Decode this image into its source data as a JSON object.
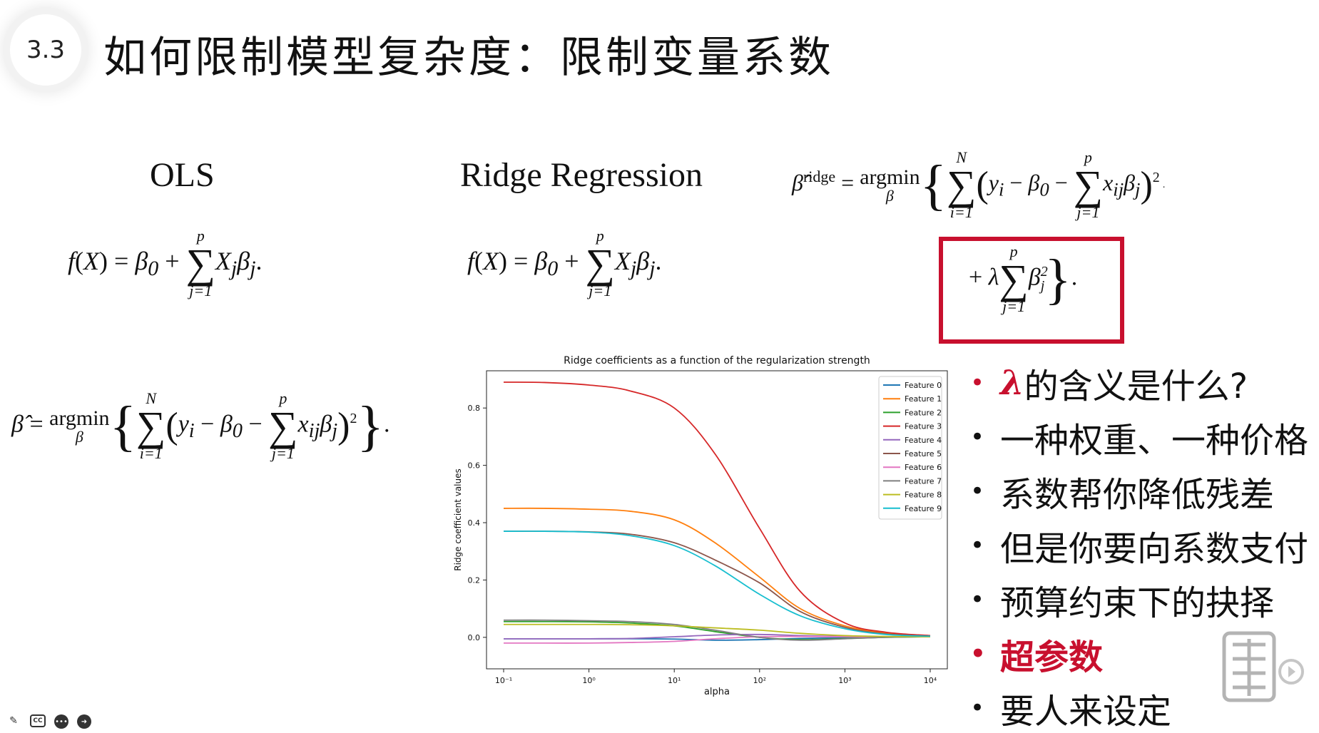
{
  "slide": {
    "section_number": "3.3",
    "title": "如何限制模型复杂度：限制变量系数"
  },
  "ols": {
    "heading": "OLS"
  },
  "ridge": {
    "heading": "Ridge Regression"
  },
  "chart_data": {
    "type": "line",
    "title": "Ridge coefficients as a function of the regularization strength",
    "xlabel": "alpha",
    "ylabel": "Ridge coefficient values",
    "xscale": "log",
    "xlim": [
      0.1,
      10000
    ],
    "ylim": [
      -0.08,
      0.9
    ],
    "x_ticks": [
      "10⁻¹",
      "10⁰",
      "10¹",
      "10²",
      "10³",
      "10⁴"
    ],
    "y_ticks": [
      "0.0",
      "0.2",
      "0.4",
      "0.6",
      "0.8"
    ],
    "x": [
      0.1,
      0.3,
      1,
      3,
      10,
      30,
      100,
      300,
      1000,
      3000,
      10000
    ],
    "legend_position": "top-right",
    "series": [
      {
        "name": "Feature 0",
        "color": "#1f77b4",
        "values": [
          -0.005,
          -0.005,
          -0.005,
          -0.005,
          -0.006,
          -0.01,
          -0.008,
          -0.004,
          -0.001,
          0.001,
          0.002
        ]
      },
      {
        "name": "Feature 1",
        "color": "#ff7f0e",
        "values": [
          0.45,
          0.45,
          0.447,
          0.44,
          0.41,
          0.33,
          0.21,
          0.1,
          0.04,
          0.015,
          0.005
        ]
      },
      {
        "name": "Feature 2",
        "color": "#2ca02c",
        "values": [
          0.055,
          0.055,
          0.054,
          0.05,
          0.04,
          0.02,
          0.0,
          -0.008,
          -0.004,
          0.0,
          0.002
        ]
      },
      {
        "name": "Feature 3",
        "color": "#d62728",
        "values": [
          0.89,
          0.889,
          0.88,
          0.86,
          0.8,
          0.64,
          0.38,
          0.16,
          0.05,
          0.018,
          0.006
        ]
      },
      {
        "name": "Feature 4",
        "color": "#9467bd",
        "values": [
          -0.005,
          -0.005,
          -0.005,
          -0.004,
          0.002,
          0.008,
          0.01,
          0.006,
          0.003,
          0.002,
          0.002
        ]
      },
      {
        "name": "Feature 5",
        "color": "#8c564b",
        "values": [
          0.37,
          0.37,
          0.368,
          0.36,
          0.33,
          0.27,
          0.19,
          0.09,
          0.035,
          0.012,
          0.004
        ]
      },
      {
        "name": "Feature 6",
        "color": "#e377c2",
        "values": [
          -0.02,
          -0.02,
          -0.02,
          -0.018,
          -0.014,
          -0.005,
          0.002,
          0.003,
          0.002,
          0.002,
          0.002
        ]
      },
      {
        "name": "Feature 7",
        "color": "#7f7f7f",
        "values": [
          0.06,
          0.06,
          0.058,
          0.055,
          0.045,
          0.025,
          0.0,
          -0.01,
          -0.005,
          0.0,
          0.002
        ]
      },
      {
        "name": "Feature 8",
        "color": "#bcbd22",
        "values": [
          0.045,
          0.045,
          0.045,
          0.044,
          0.04,
          0.033,
          0.025,
          0.014,
          0.006,
          0.003,
          0.002
        ]
      },
      {
        "name": "Feature 9",
        "color": "#17becf",
        "values": [
          0.37,
          0.37,
          0.367,
          0.355,
          0.32,
          0.25,
          0.15,
          0.075,
          0.03,
          0.01,
          0.004
        ]
      }
    ]
  },
  "bullets": {
    "b1_lambda": "λ",
    "b1_rest": "的含义是什么?",
    "b2": "一种权重、一种价格",
    "b3": "系数帮你降低残差",
    "b4": "但是你要向系数支付",
    "b5": "预算约束下的抉择",
    "b6": "超参数",
    "b7": "要人来设定",
    "dot": "•"
  }
}
